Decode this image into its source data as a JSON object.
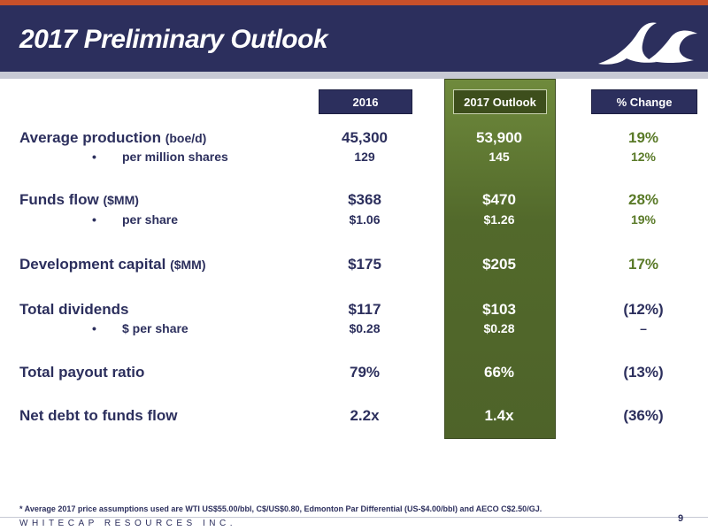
{
  "slide": {
    "title": "2017 Preliminary Outlook",
    "columns": {
      "c2016": "2016",
      "c2017": "2017 Outlook",
      "pct": "% Change"
    },
    "rows": [
      {
        "label": "Average production",
        "unit": "(boe/d)",
        "v2016": "45,300",
        "v2017": "53,900",
        "pct": "19%",
        "sub": {
          "label": "per million shares",
          "v2016": "129",
          "v2017": "145",
          "pct": "12%"
        }
      },
      {
        "label": "Funds flow",
        "unit": "($MM)",
        "v2016": "$368",
        "v2017": "$470",
        "pct": "28%",
        "sub": {
          "label": "per share",
          "v2016": "$1.06",
          "v2017": "$1.26",
          "pct": "19%"
        }
      },
      {
        "label": "Development capital",
        "unit": "($MM)",
        "v2016": "$175",
        "v2017": "$205",
        "pct": "17%"
      },
      {
        "label": "Total dividends",
        "unit": "",
        "v2016": "$117",
        "v2017": "$103",
        "pct": "(12%)",
        "sub": {
          "label": "$ per share",
          "v2016": "$0.28",
          "v2017": "$0.28",
          "pct": "–"
        }
      },
      {
        "label": "Total payout ratio",
        "unit": "",
        "v2016": "79%",
        "v2017": "66%",
        "pct": "(13%)"
      },
      {
        "label": "Net debt to funds flow",
        "unit": "",
        "v2016": "2.2x",
        "v2017": "1.4x",
        "pct": "(36%)"
      }
    ],
    "bullet": "•",
    "footnote": "* Average 2017 price assumptions used are WTI US$55.00/bbl, C$/US$0.80, Edmonton Par Differential (US-$4.00/bbl) and AECO C$2.50/GJ.",
    "company": "WHITECAP RESOURCES INC.",
    "page_number": "9",
    "logo_icon": "wave-logo-icon"
  },
  "colors": {
    "navy": "#2c2f5d",
    "accent_orange": "#c8502a",
    "outlook_green": "#52692b",
    "positive_green": "#5a7a28"
  }
}
